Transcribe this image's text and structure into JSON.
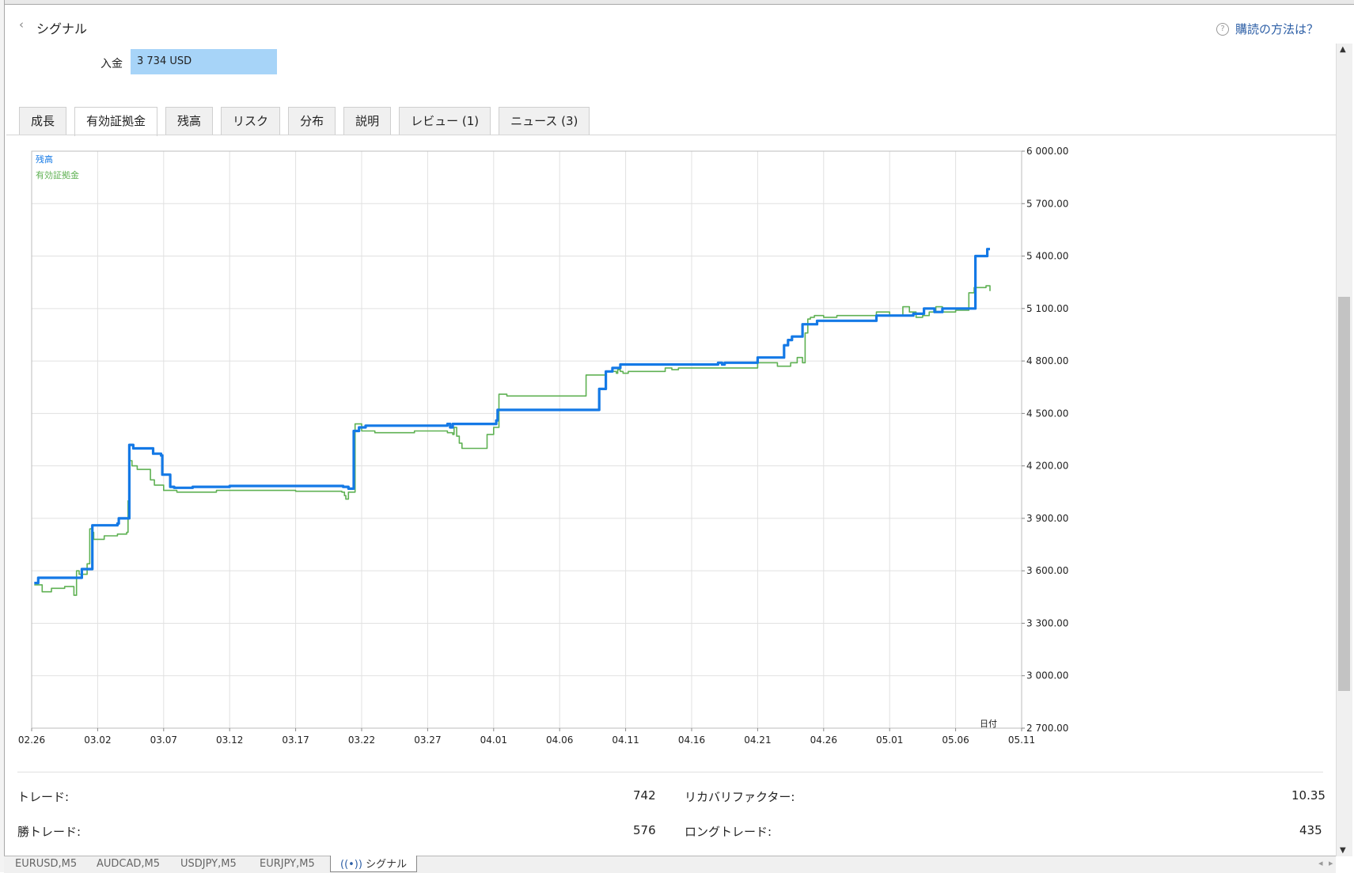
{
  "header": {
    "back_icon": "chevron-left-icon",
    "title": "シグナル",
    "help_icon": "question-circle-icon",
    "help_link": "購読の方法は？"
  },
  "deposit": {
    "label": "入金",
    "value": "3 734 USD"
  },
  "tabs": [
    {
      "label": "成長",
      "active": false
    },
    {
      "label": "有効証拠金",
      "active": true
    },
    {
      "label": "残高",
      "active": false
    },
    {
      "label": "リスク",
      "active": false
    },
    {
      "label": "分布",
      "active": false
    },
    {
      "label": "説明",
      "active": false
    },
    {
      "label": "レビュー (1)",
      "active": false
    },
    {
      "label": "ニュース (3)",
      "active": false
    }
  ],
  "chart_data": {
    "type": "line",
    "legend_placement": "top-left",
    "xlabel": "日付",
    "x_ticks": [
      "02.26",
      "03.02",
      "03.07",
      "03.12",
      "03.17",
      "03.22",
      "03.27",
      "04.01",
      "04.06",
      "04.11",
      "04.16",
      "04.21",
      "04.26",
      "05.01",
      "05.06",
      "05.11"
    ],
    "y_ticks": [
      "6 000.00",
      "5 700.00",
      "5 400.00",
      "5 100.00",
      "4 800.00",
      "4 500.00",
      "4 200.00",
      "3 900.00",
      "3 600.00",
      "3 300.00",
      "3 000.00",
      "2 700.00"
    ],
    "ylim": [
      2700,
      6000
    ],
    "grid": true,
    "series": [
      {
        "name": "残高",
        "color": "#1479e6",
        "x": [
          0.2,
          0.5,
          3.6,
          3.8,
          4.6,
          4.6,
          6.5,
          6.6,
          7.3,
          7.4,
          7.6,
          7.7,
          9.2,
          9.8,
          9.9,
          10.5,
          10.8,
          12.2,
          15,
          20,
          23.6,
          23.8,
          24.0,
          24.4,
          24.8,
          25.3,
          30,
          31.5,
          31.7,
          31.9,
          32.0,
          35,
          35.2,
          35.3,
          35.5,
          35.7,
          36.0,
          40,
          43.0,
          43.5,
          44.0,
          44.2,
          44.6,
          44.8,
          45.0,
          45.2,
          45.4,
          48.0,
          48.2,
          50,
          52.0,
          52.3,
          52.5,
          54.1,
          55.0,
          57.0,
          57.3,
          57.6,
          57.7,
          57.9,
          58.0,
          58.4,
          58.8,
          59.5,
          60.0,
          61.5,
          62.0,
          64.0,
          65.0,
          66.3,
          66.8,
          67.2,
          67.6,
          68.4,
          69.0,
          70.0,
          70.2,
          71.5,
          71.6,
          72.4,
          72.6
        ],
        "y": [
          3530,
          3560,
          3560,
          3610,
          3620,
          3860,
          3870,
          3900,
          3900,
          4320,
          4320,
          4300,
          4270,
          4260,
          4150,
          4080,
          4075,
          4080,
          4085,
          4085,
          4080,
          4080,
          4070,
          4400,
          4420,
          4430,
          4430,
          4440,
          4420,
          4440,
          4440,
          4440,
          4460,
          4520,
          4520,
          4520,
          4520,
          4520,
          4640,
          4740,
          4760,
          4760,
          4780,
          4780,
          4780,
          4780,
          4780,
          4780,
          4780,
          4780,
          4790,
          4780,
          4790,
          4790,
          4820,
          4890,
          4920,
          4940,
          4940,
          4940,
          4940,
          5010,
          5010,
          5030,
          5030,
          5030,
          5030,
          5060,
          5060,
          5060,
          5070,
          5070,
          5100,
          5080,
          5100,
          5100,
          5100,
          5400,
          5400,
          5440,
          5440
        ]
      },
      {
        "name": "有効証拠金",
        "color": "#5fb153",
        "x": [
          0.2,
          0.8,
          1.5,
          2.5,
          3.2,
          3.4,
          3.6,
          4.2,
          4.4,
          4.6,
          4.7,
          5.5,
          6.5,
          7.2,
          7.3,
          7.4,
          7.6,
          8.0,
          9.0,
          9.3,
          10.0,
          11.0,
          14.0,
          18.0,
          20.0,
          23.5,
          23.7,
          23.8,
          24.0,
          24.5,
          25.0,
          26.0,
          29.0,
          31.5,
          31.9,
          32.0,
          32.2,
          32.4,
          32.6,
          34.5,
          35.0,
          35.2,
          35.4,
          36.0,
          37.0,
          40.0,
          41.5,
          42.0,
          43.5,
          44.0,
          44.3,
          44.4,
          44.6,
          44.8,
          45.2,
          45.4,
          46.0,
          47.0,
          47.6,
          48.0,
          48.5,
          49.0,
          52.0,
          53.0,
          55.0,
          56.5,
          57.5,
          58.0,
          58.4,
          58.6,
          58.8,
          59.0,
          59.3,
          60.0,
          61.0,
          62.0,
          63.0,
          64.0,
          65.0,
          66.0,
          66.5,
          67.0,
          67.5,
          68.0,
          68.5,
          69.0,
          70.0,
          71.0,
          71.4,
          71.8,
          72.0,
          72.3,
          72.6
        ],
        "y": [
          3520,
          3480,
          3500,
          3510,
          3460,
          3600,
          3580,
          3640,
          3840,
          3820,
          3780,
          3800,
          3810,
          3820,
          4000,
          4230,
          4200,
          4180,
          4120,
          4090,
          4060,
          4050,
          4060,
          4060,
          4055,
          4050,
          4030,
          4010,
          4050,
          4440,
          4400,
          4390,
          4400,
          4390,
          4380,
          4420,
          4370,
          4330,
          4300,
          4380,
          4420,
          4420,
          4610,
          4600,
          4600,
          4600,
          4600,
          4720,
          4740,
          4740,
          4730,
          4750,
          4740,
          4730,
          4740,
          4740,
          4740,
          4740,
          4740,
          4760,
          4750,
          4760,
          4760,
          4760,
          4790,
          4770,
          4790,
          4820,
          4790,
          4960,
          5040,
          5050,
          5060,
          5050,
          5060,
          5060,
          5060,
          5080,
          5060,
          5110,
          5080,
          5050,
          5060,
          5080,
          5110,
          5080,
          5090,
          5190,
          5220,
          5220,
          5220,
          5230,
          5200
        ],
        "y_note": null
      }
    ]
  },
  "stats": {
    "trades_label": "トレード:",
    "trades_value": "742",
    "recovery_label": "リカバリファクター:",
    "recovery_value": "10.35",
    "wins_label": "勝トレード:",
    "wins_value": "576",
    "long_label": "ロングトレード:",
    "long_value": "435"
  },
  "bottom_tabs": [
    "EURUSD,M5",
    "AUDCAD,M5",
    "USDJPY,M5",
    "EURJPY,M5",
    "シグナル"
  ],
  "bottom_signal_icon": "broadcast-icon",
  "colors": {
    "balance": "#1479e6",
    "equity": "#5fb153",
    "deposit_bg": "#a7d4f8",
    "grid": "#e1e1e1"
  }
}
